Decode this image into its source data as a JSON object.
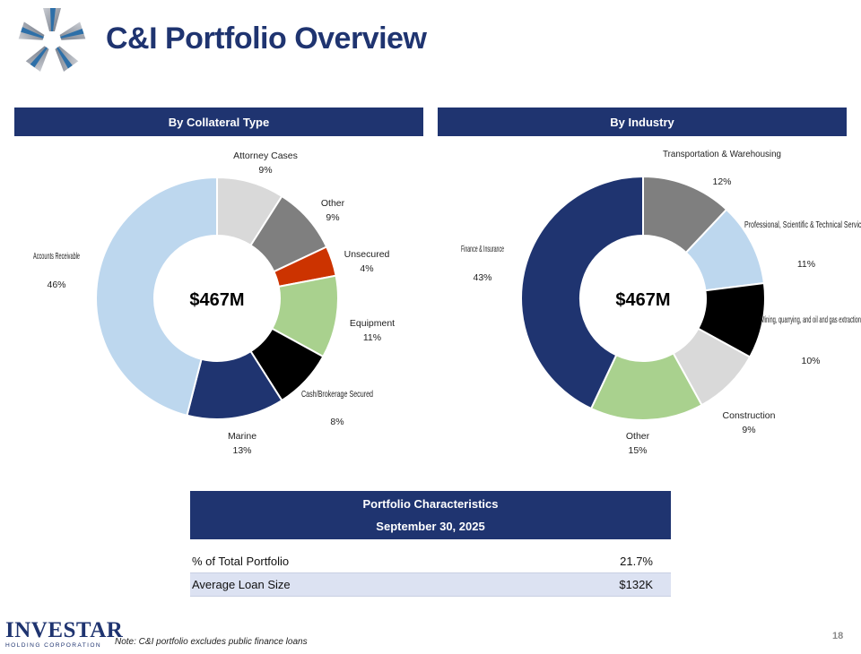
{
  "title": "C&I Portfolio Overview",
  "colors": {
    "navy": "#1f3470",
    "light_blue": "#bdd7ee",
    "light_gray": "#d9d9d9",
    "gray": "#7f7f7f",
    "red": "#cc3300",
    "green": "#a9d18e",
    "black": "#000000"
  },
  "chart_data": [
    {
      "type": "pie",
      "title": "By Collateral Type",
      "center_label": "$467M",
      "slices": [
        {
          "label": "Attorney Cases",
          "value": 9,
          "pct": "9%",
          "color": "#d9d9d9"
        },
        {
          "label": "Other",
          "value": 9,
          "pct": "9%",
          "color": "#7f7f7f"
        },
        {
          "label": "Unsecured",
          "value": 4,
          "pct": "4%",
          "color": "#cc3300"
        },
        {
          "label": "Equipment",
          "value": 11,
          "pct": "11%",
          "color": "#a9d18e"
        },
        {
          "label": "Cash/Brokerage Secured",
          "value": 8,
          "pct": "8%",
          "color": "#000000"
        },
        {
          "label": "Marine",
          "value": 13,
          "pct": "13%",
          "color": "#1f3470"
        },
        {
          "label": "Accounts Receivable",
          "value": 46,
          "pct": "46%",
          "color": "#bdd7ee"
        }
      ]
    },
    {
      "type": "pie",
      "title": "By Industry",
      "center_label": "$467M",
      "slices": [
        {
          "label": "Transportation & Warehousing",
          "value": 12,
          "pct": "12%",
          "color": "#7f7f7f"
        },
        {
          "label": "Professional, Scientific & Technical Services",
          "value": 11,
          "pct": "11%",
          "color": "#bdd7ee"
        },
        {
          "label": "Mining, quarrying, and oil and gas extraction",
          "value": 10,
          "pct": "10%",
          "color": "#000000"
        },
        {
          "label": "Construction",
          "value": 9,
          "pct": "9%",
          "color": "#d9d9d9"
        },
        {
          "label": "Other",
          "value": 15,
          "pct": "15%",
          "color": "#a9d18e"
        },
        {
          "label": "Finance & Insurance",
          "value": 43,
          "pct": "43%",
          "color": "#1f3470"
        }
      ]
    }
  ],
  "table": {
    "header_line1": "Portfolio Characteristics",
    "header_line2": "September 30, 2025",
    "rows": [
      {
        "label": "% of Total Portfolio",
        "value": "21.7%"
      },
      {
        "label": "Average Loan Size",
        "value": "$132K"
      }
    ]
  },
  "footer": {
    "brand_name": "INVESTAR",
    "brand_sub": "HOLDING CORPORATION",
    "note": "Note: C&I portfolio excludes public finance loans",
    "page_number": "18"
  }
}
